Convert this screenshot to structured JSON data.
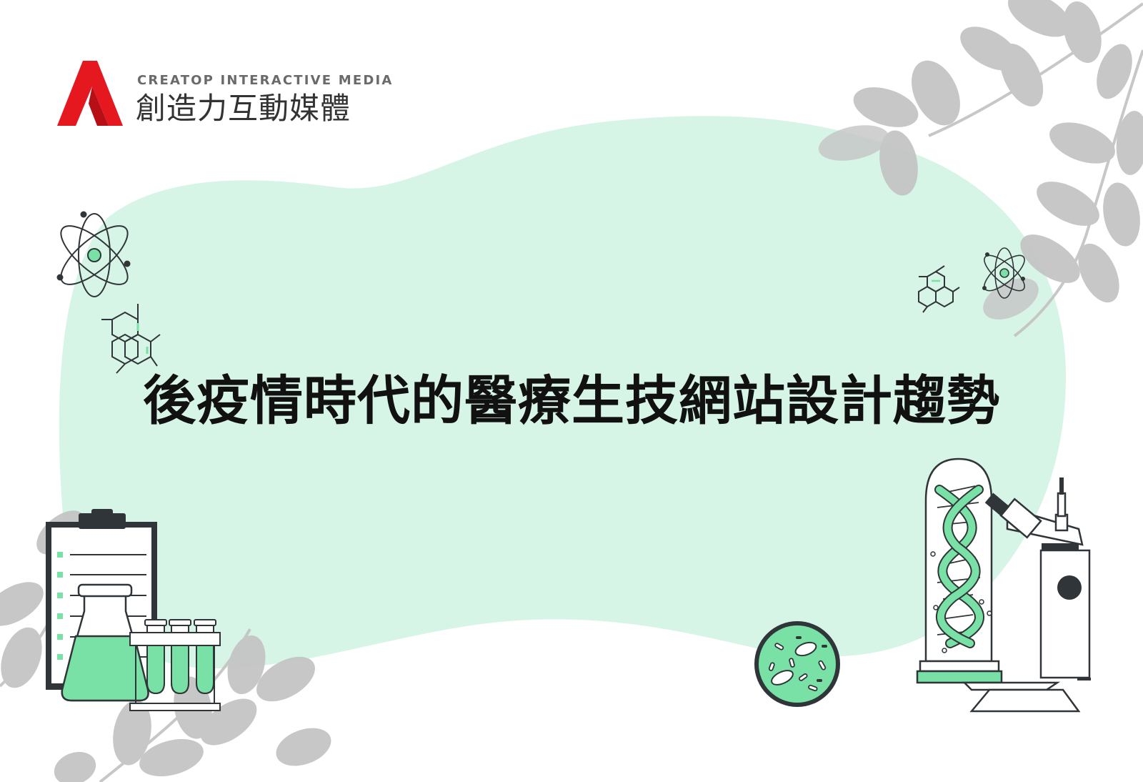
{
  "brand": {
    "name_en": "CREATOP INTERACTIVE MEDIA",
    "name_zh": "創造力互動媒體",
    "logo_icon": "creatop-a-logo",
    "accent_color": "#e5171f"
  },
  "headline": {
    "text": "後疫情時代的醫療生技網站設計趨勢"
  },
  "palette": {
    "mint_background": "#d7f5e6",
    "mint_accent": "#79e0a6",
    "leaf_gray": "#c8c8c8",
    "ink": "#2f3538"
  },
  "illustrations": [
    "atom-icon",
    "molecule-hexagon-icon",
    "clipboard-checklist-icon",
    "erlenmeyer-flask-icon",
    "test-tube-rack-icon",
    "petri-dish-bacteria-icon",
    "dna-helix-jar-icon",
    "microscope-icon",
    "leafy-branch-icon"
  ]
}
